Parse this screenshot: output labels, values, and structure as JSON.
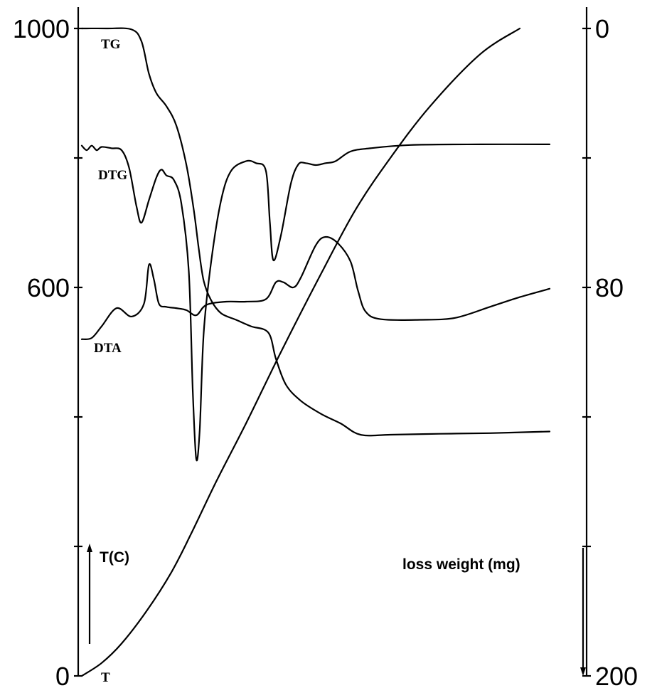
{
  "chart_data": {
    "type": "line",
    "title": "",
    "left_axis": {
      "title": "T(C)",
      "ylim": [
        0,
        1000
      ],
      "ticks": [
        0,
        200,
        400,
        600,
        800,
        1000
      ],
      "tick_labels": [
        "0",
        "",
        "",
        "600",
        "",
        "1000"
      ]
    },
    "right_axis": {
      "title": "loss weight (mg)",
      "ylim": [
        0,
        200
      ],
      "inverted": true,
      "ticks": [
        0,
        40,
        80,
        120,
        160,
        200
      ],
      "tick_labels": [
        "0",
        "",
        "80",
        "",
        "",
        "200"
      ]
    },
    "x_range": [
      0,
      100
    ],
    "grid": false,
    "legend": "none",
    "series": [
      {
        "name": "TG",
        "axis": "right",
        "points": [
          [
            0,
            0
          ],
          [
            5,
            0
          ],
          [
            10,
            0.3
          ],
          [
            12,
            4
          ],
          [
            13.5,
            14
          ],
          [
            15,
            20
          ],
          [
            17,
            24
          ],
          [
            19,
            30
          ],
          [
            21,
            42
          ],
          [
            22.5,
            56
          ],
          [
            23.5,
            68
          ],
          [
            24.5,
            78
          ],
          [
            26,
            84
          ],
          [
            28,
            88
          ],
          [
            31,
            90
          ],
          [
            34,
            92
          ],
          [
            37.5,
            94
          ],
          [
            39,
            102
          ],
          [
            41,
            110
          ],
          [
            44,
            115
          ],
          [
            48,
            119
          ],
          [
            52,
            122
          ],
          [
            56,
            125.5
          ],
          [
            62,
            125.5
          ],
          [
            72,
            125.2
          ],
          [
            82,
            125
          ],
          [
            94,
            124.5
          ]
        ]
      },
      {
        "name": "DTG",
        "axis": "left",
        "points": [
          [
            0,
            819
          ],
          [
            1,
            812
          ],
          [
            2,
            819
          ],
          [
            3,
            812
          ],
          [
            4,
            817
          ],
          [
            6,
            815
          ],
          [
            8,
            812
          ],
          [
            9.5,
            785
          ],
          [
            11,
            725
          ],
          [
            12,
            700
          ],
          [
            13.5,
            735
          ],
          [
            15,
            770
          ],
          [
            16,
            782
          ],
          [
            17,
            773
          ],
          [
            18.5,
            766
          ],
          [
            20,
            730
          ],
          [
            21.5,
            625
          ],
          [
            22.3,
            440
          ],
          [
            23,
            335
          ],
          [
            23.7,
            380
          ],
          [
            24.5,
            530
          ],
          [
            26,
            640
          ],
          [
            28,
            735
          ],
          [
            30,
            780
          ],
          [
            33,
            795
          ],
          [
            35,
            792
          ],
          [
            37,
            780
          ],
          [
            37.8,
            700
          ],
          [
            38.5,
            642
          ],
          [
            40,
            680
          ],
          [
            42,
            760
          ],
          [
            43.5,
            790
          ],
          [
            45,
            792
          ],
          [
            47,
            789
          ],
          [
            49,
            792
          ],
          [
            51,
            795
          ],
          [
            54,
            810
          ],
          [
            58,
            815
          ],
          [
            66,
            820
          ],
          [
            80,
            821
          ],
          [
            94,
            821
          ]
        ]
      },
      {
        "name": "DTA",
        "axis": "left",
        "points": [
          [
            0,
            520
          ],
          [
            2,
            522
          ],
          [
            4,
            540
          ],
          [
            7,
            568
          ],
          [
            10,
            555
          ],
          [
            12.5,
            575
          ],
          [
            13.5,
            635
          ],
          [
            14.5,
            612
          ],
          [
            15.5,
            575
          ],
          [
            17,
            570
          ],
          [
            19,
            568
          ],
          [
            21,
            565
          ],
          [
            23,
            557
          ],
          [
            25,
            573
          ],
          [
            29,
            578
          ],
          [
            33,
            578
          ],
          [
            37,
            582
          ],
          [
            39,
            608
          ],
          [
            40.5,
            608
          ],
          [
            42.5,
            600
          ],
          [
            44,
            615
          ],
          [
            47,
            665
          ],
          [
            49,
            678
          ],
          [
            51.5,
            668
          ],
          [
            54,
            640
          ],
          [
            55.5,
            595
          ],
          [
            57,
            563
          ],
          [
            60,
            551
          ],
          [
            68,
            550
          ],
          [
            75,
            553
          ],
          [
            82,
            570
          ],
          [
            88,
            585
          ],
          [
            94,
            598
          ]
        ]
      },
      {
        "name": "T",
        "axis": "left",
        "points": [
          [
            0,
            0
          ],
          [
            4,
            20
          ],
          [
            8,
            50
          ],
          [
            13,
            100
          ],
          [
            18,
            160
          ],
          [
            22,
            220
          ],
          [
            27,
            300
          ],
          [
            33,
            390
          ],
          [
            40,
            500
          ],
          [
            48,
            620
          ],
          [
            55,
            720
          ],
          [
            62,
            800
          ],
          [
            70,
            880
          ],
          [
            80,
            960
          ],
          [
            88,
            1000
          ]
        ]
      }
    ],
    "curve_labels": [
      "TG",
      "DTG",
      "DTA",
      "T"
    ]
  }
}
